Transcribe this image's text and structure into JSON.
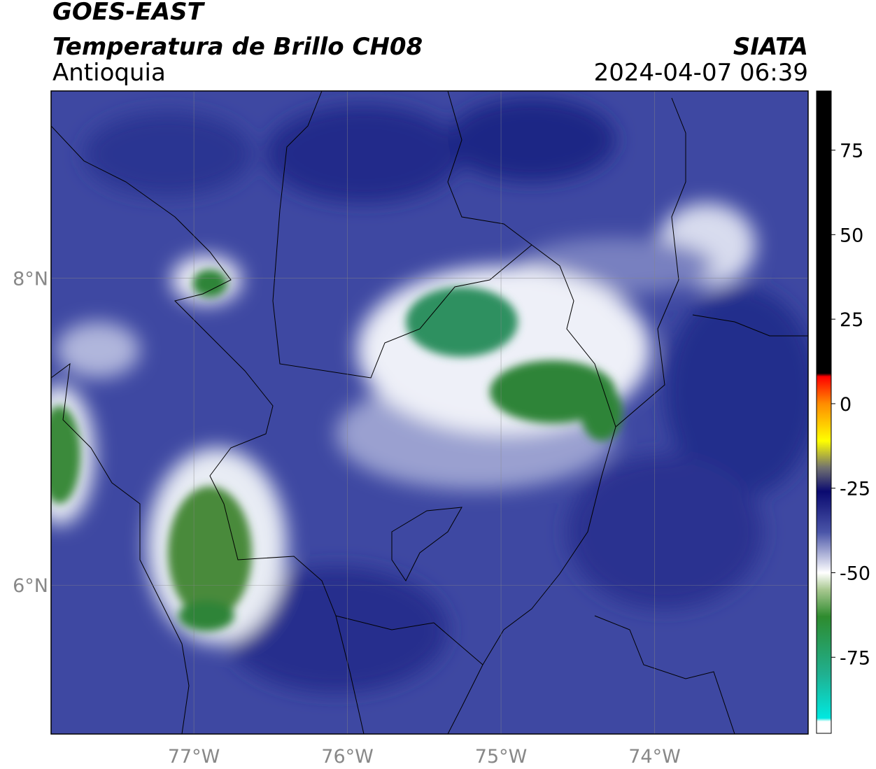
{
  "header": {
    "title": "GOES-EAST",
    "subtitle": "Temperatura de Brillo CH08",
    "region": "Antioquia",
    "source": "SIATA",
    "datetime": "2024-04-07 06:39"
  },
  "map": {
    "xlim": [
      -77.93,
      -73.0
    ],
    "ylim": [
      5.03,
      9.22
    ],
    "xticks": [
      {
        "value": -77,
        "label": "77°W"
      },
      {
        "value": -76,
        "label": "76°W"
      },
      {
        "value": -75,
        "label": "75°W"
      },
      {
        "value": -74,
        "label": "74°W"
      }
    ],
    "yticks": [
      {
        "value": 8,
        "label": "8°N"
      },
      {
        "value": 6,
        "label": "6°N"
      }
    ],
    "grid": true
  },
  "colorbar": {
    "clim": [
      -97.5,
      92.5
    ],
    "ticks": [
      75,
      50,
      25,
      0,
      -25,
      -50,
      -75
    ],
    "stops": [
      {
        "value": 92.5,
        "color": "#000000"
      },
      {
        "value": 9,
        "color": "#000000"
      },
      {
        "value": 8,
        "color": "#ff0000"
      },
      {
        "value": 0,
        "color": "#ff8c00"
      },
      {
        "value": -11,
        "color": "#ffff00"
      },
      {
        "value": -19,
        "color": "#707070"
      },
      {
        "value": -26,
        "color": "#0a0a70"
      },
      {
        "value": -38,
        "color": "#4a55a8"
      },
      {
        "value": -50,
        "color": "#ffffff"
      },
      {
        "value": -55,
        "color": "#a8c890"
      },
      {
        "value": -63,
        "color": "#2e8b2e"
      },
      {
        "value": -80,
        "color": "#20b090"
      },
      {
        "value": -93,
        "color": "#00e8e0"
      },
      {
        "value": -94,
        "color": "#ffffff"
      },
      {
        "value": -97.5,
        "color": "#ffffff"
      }
    ]
  }
}
